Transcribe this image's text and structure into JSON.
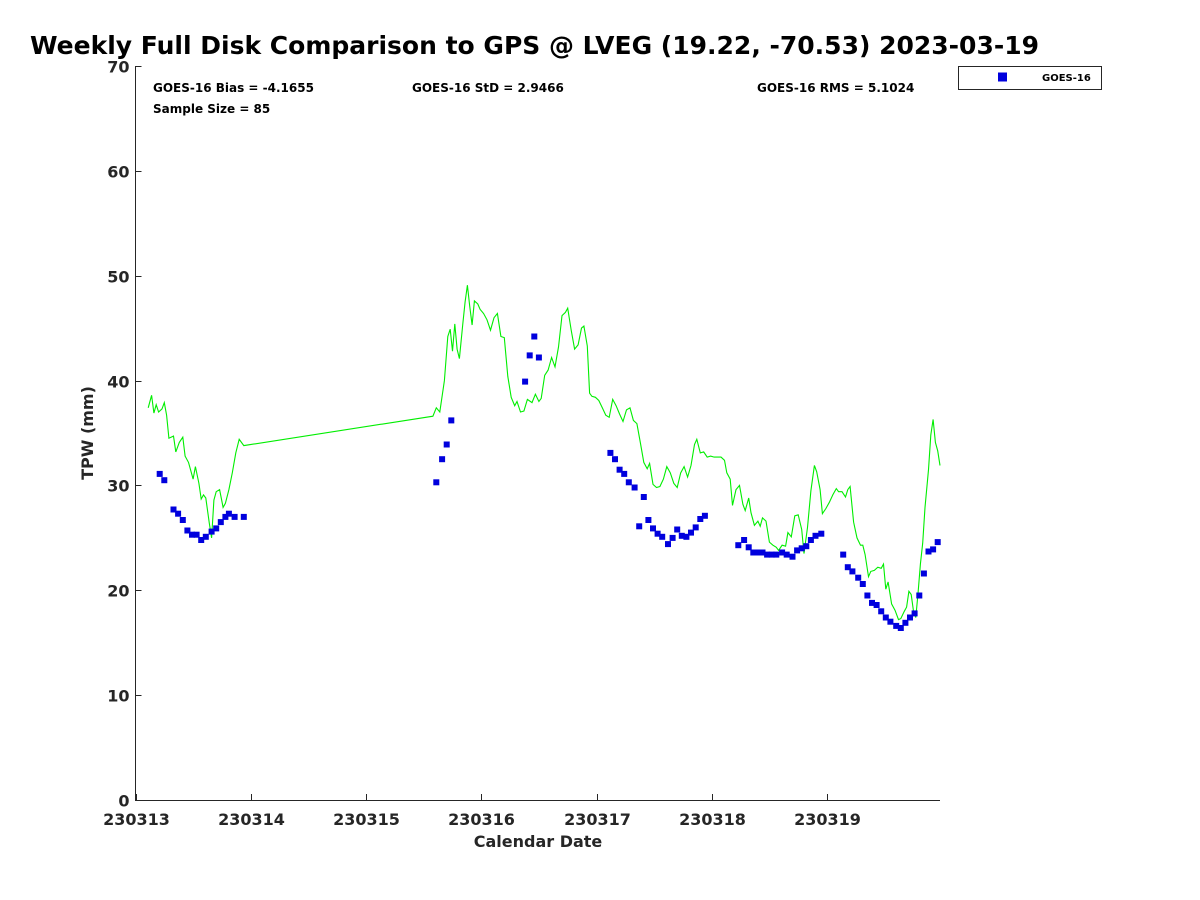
{
  "colors": {
    "series": "#0000dd",
    "gps": "#00ee00",
    "axis": "#262626"
  },
  "chart_data": {
    "type": "scatter",
    "title": "Weekly Full Disk Comparison to GPS @ LVEG (19.22, -70.53) 2023-03-19",
    "xlabel": "Calendar Date",
    "ylabel": "TPW (mm)",
    "xlim": [
      13.0,
      19.98
    ],
    "ylim": [
      0,
      70
    ],
    "yticks": [
      0,
      10,
      20,
      30,
      40,
      50,
      60,
      70
    ],
    "xticks": [
      {
        "value": 13,
        "label": "230313"
      },
      {
        "value": 14,
        "label": "230314"
      },
      {
        "value": 15,
        "label": "230315"
      },
      {
        "value": 16,
        "label": "230316"
      },
      {
        "value": 17,
        "label": "230317"
      },
      {
        "value": 18,
        "label": "230318"
      },
      {
        "value": 19,
        "label": "230319"
      }
    ],
    "stats": {
      "bias": "GOES-16 Bias = -4.1655",
      "std": "GOES-16 StD = 2.9466",
      "rms": "GOES-16 RMS = 5.1024",
      "sample": "Sample Size = 85"
    },
    "legend": {
      "label": "GOES-16",
      "position": "top-right outside"
    },
    "series": [
      {
        "name": "GOES-16",
        "marker": "square",
        "points": [
          [
            13.21,
            31.1
          ],
          [
            13.25,
            30.5
          ],
          [
            13.33,
            27.7
          ],
          [
            13.37,
            27.3
          ],
          [
            13.41,
            26.7
          ],
          [
            13.45,
            25.7
          ],
          [
            13.49,
            25.3
          ],
          [
            13.53,
            25.3
          ],
          [
            13.57,
            24.8
          ],
          [
            13.61,
            25.1
          ],
          [
            13.66,
            25.6
          ],
          [
            13.7,
            25.9
          ],
          [
            13.74,
            26.5
          ],
          [
            13.78,
            27.0
          ],
          [
            13.81,
            27.3
          ],
          [
            13.86,
            27.0
          ],
          [
            13.94,
            27.0
          ],
          [
            15.61,
            30.3
          ],
          [
            15.66,
            32.5
          ],
          [
            15.7,
            33.9
          ],
          [
            15.74,
            36.2
          ],
          [
            16.38,
            39.9
          ],
          [
            16.42,
            42.4
          ],
          [
            16.46,
            44.2
          ],
          [
            16.5,
            42.2
          ],
          [
            17.12,
            33.1
          ],
          [
            17.16,
            32.5
          ],
          [
            17.2,
            31.5
          ],
          [
            17.24,
            31.1
          ],
          [
            17.28,
            30.3
          ],
          [
            17.33,
            29.8
          ],
          [
            17.37,
            26.1
          ],
          [
            17.41,
            28.9
          ],
          [
            17.45,
            26.7
          ],
          [
            17.49,
            25.9
          ],
          [
            17.53,
            25.4
          ],
          [
            17.57,
            25.1
          ],
          [
            17.62,
            24.4
          ],
          [
            17.66,
            25.0
          ],
          [
            17.7,
            25.8
          ],
          [
            17.74,
            25.2
          ],
          [
            17.78,
            25.1
          ],
          [
            17.82,
            25.5
          ],
          [
            17.86,
            26.0
          ],
          [
            17.9,
            26.8
          ],
          [
            17.94,
            27.1
          ],
          [
            18.23,
            24.3
          ],
          [
            18.28,
            24.8
          ],
          [
            18.32,
            24.1
          ],
          [
            18.36,
            23.6
          ],
          [
            18.4,
            23.6
          ],
          [
            18.44,
            23.6
          ],
          [
            18.48,
            23.4
          ],
          [
            18.52,
            23.4
          ],
          [
            18.56,
            23.4
          ],
          [
            18.61,
            23.6
          ],
          [
            18.65,
            23.4
          ],
          [
            18.7,
            23.2
          ],
          [
            18.74,
            23.8
          ],
          [
            18.78,
            24.0
          ],
          [
            18.82,
            24.2
          ],
          [
            18.86,
            24.8
          ],
          [
            18.9,
            25.2
          ],
          [
            18.95,
            25.4
          ],
          [
            19.14,
            23.4
          ],
          [
            19.18,
            22.2
          ],
          [
            19.22,
            21.8
          ],
          [
            19.27,
            21.2
          ],
          [
            19.31,
            20.6
          ],
          [
            19.35,
            19.5
          ],
          [
            19.39,
            18.8
          ],
          [
            19.43,
            18.6
          ],
          [
            19.47,
            18.0
          ],
          [
            19.51,
            17.4
          ],
          [
            19.55,
            17.0
          ],
          [
            19.6,
            16.6
          ],
          [
            19.64,
            16.4
          ],
          [
            19.68,
            16.9
          ],
          [
            19.72,
            17.4
          ],
          [
            19.76,
            17.8
          ],
          [
            19.8,
            19.5
          ],
          [
            19.84,
            21.6
          ],
          [
            19.88,
            23.7
          ],
          [
            19.92,
            23.9
          ],
          [
            19.96,
            24.6
          ]
        ]
      },
      {
        "name": "GPS",
        "marker": "line",
        "points": [
          [
            13.11,
            37.4
          ],
          [
            13.14,
            38.6
          ],
          [
            13.16,
            36.9
          ],
          [
            13.18,
            37.7
          ],
          [
            13.2,
            37.0
          ],
          [
            13.23,
            37.3
          ],
          [
            13.25,
            37.9
          ],
          [
            13.27,
            36.7
          ],
          [
            13.29,
            34.5
          ],
          [
            13.33,
            34.7
          ],
          [
            13.35,
            33.2
          ],
          [
            13.38,
            34.1
          ],
          [
            13.41,
            34.6
          ],
          [
            13.43,
            32.8
          ],
          [
            13.46,
            32.2
          ],
          [
            13.48,
            31.4
          ],
          [
            13.5,
            30.6
          ],
          [
            13.52,
            31.8
          ],
          [
            13.55,
            30.2
          ],
          [
            13.57,
            28.7
          ],
          [
            13.59,
            29.1
          ],
          [
            13.61,
            28.8
          ],
          [
            13.64,
            26.4
          ],
          [
            13.66,
            25.0
          ],
          [
            13.68,
            28.6
          ],
          [
            13.7,
            29.4
          ],
          [
            13.73,
            29.6
          ],
          [
            13.76,
            27.9
          ],
          [
            13.78,
            28.3
          ],
          [
            13.81,
            29.6
          ],
          [
            13.84,
            31.2
          ],
          [
            13.87,
            33.1
          ],
          [
            13.9,
            34.4
          ],
          [
            13.94,
            33.8
          ],
          [
            15.58,
            36.6
          ],
          [
            15.61,
            37.4
          ],
          [
            15.64,
            37.0
          ],
          [
            15.68,
            40.0
          ],
          [
            15.71,
            44.2
          ],
          [
            15.73,
            44.9
          ],
          [
            15.75,
            42.8
          ],
          [
            15.77,
            45.4
          ],
          [
            15.79,
            43.0
          ],
          [
            15.81,
            42.1
          ],
          [
            15.84,
            45.4
          ],
          [
            15.86,
            47.5
          ],
          [
            15.88,
            49.1
          ],
          [
            15.9,
            47.1
          ],
          [
            15.92,
            45.3
          ],
          [
            15.94,
            47.6
          ],
          [
            15.97,
            47.3
          ],
          [
            15.99,
            46.8
          ],
          [
            16.02,
            46.4
          ],
          [
            16.05,
            45.8
          ],
          [
            16.08,
            44.8
          ],
          [
            16.11,
            46.0
          ],
          [
            16.14,
            46.4
          ],
          [
            16.17,
            44.2
          ],
          [
            16.2,
            44.1
          ],
          [
            16.23,
            40.4
          ],
          [
            16.26,
            38.4
          ],
          [
            16.29,
            37.6
          ],
          [
            16.31,
            38.0
          ],
          [
            16.34,
            37.0
          ],
          [
            16.37,
            37.1
          ],
          [
            16.4,
            38.2
          ],
          [
            16.44,
            37.9
          ],
          [
            16.47,
            38.7
          ],
          [
            16.5,
            38.0
          ],
          [
            16.52,
            38.3
          ],
          [
            16.55,
            40.5
          ],
          [
            16.58,
            41.0
          ],
          [
            16.61,
            42.2
          ],
          [
            16.64,
            41.3
          ],
          [
            16.67,
            43.2
          ],
          [
            16.7,
            46.2
          ],
          [
            16.73,
            46.5
          ],
          [
            16.75,
            46.9
          ],
          [
            16.78,
            44.8
          ],
          [
            16.81,
            43.0
          ],
          [
            16.84,
            43.4
          ],
          [
            16.87,
            45.0
          ],
          [
            16.89,
            45.2
          ],
          [
            16.92,
            43.3
          ],
          [
            16.94,
            38.8
          ],
          [
            16.96,
            38.5
          ],
          [
            16.99,
            38.4
          ],
          [
            17.02,
            38.1
          ],
          [
            17.05,
            37.4
          ],
          [
            17.08,
            36.7
          ],
          [
            17.11,
            36.5
          ],
          [
            17.14,
            38.2
          ],
          [
            17.17,
            37.6
          ],
          [
            17.2,
            36.8
          ],
          [
            17.23,
            36.1
          ],
          [
            17.26,
            37.2
          ],
          [
            17.29,
            37.4
          ],
          [
            17.32,
            36.2
          ],
          [
            17.35,
            35.9
          ],
          [
            17.38,
            34.1
          ],
          [
            17.41,
            32.2
          ],
          [
            17.44,
            31.6
          ],
          [
            17.46,
            32.1
          ],
          [
            17.49,
            30.1
          ],
          [
            17.52,
            29.8
          ],
          [
            17.55,
            29.9
          ],
          [
            17.58,
            30.6
          ],
          [
            17.61,
            31.8
          ],
          [
            17.64,
            31.2
          ],
          [
            17.67,
            30.2
          ],
          [
            17.7,
            29.8
          ],
          [
            17.73,
            31.2
          ],
          [
            17.76,
            31.8
          ],
          [
            17.79,
            30.8
          ],
          [
            17.82,
            31.9
          ],
          [
            17.85,
            33.9
          ],
          [
            17.87,
            34.4
          ],
          [
            17.9,
            33.1
          ],
          [
            17.93,
            33.2
          ],
          [
            17.96,
            32.7
          ],
          [
            17.99,
            32.8
          ],
          [
            18.02,
            32.7
          ],
          [
            18.05,
            32.7
          ],
          [
            18.08,
            32.7
          ],
          [
            18.11,
            32.4
          ],
          [
            18.13,
            31.2
          ],
          [
            18.16,
            30.6
          ],
          [
            18.18,
            28.1
          ],
          [
            18.21,
            29.6
          ],
          [
            18.24,
            30.0
          ],
          [
            18.27,
            28.2
          ],
          [
            18.29,
            27.6
          ],
          [
            18.32,
            28.8
          ],
          [
            18.34,
            27.4
          ],
          [
            18.37,
            26.2
          ],
          [
            18.4,
            26.6
          ],
          [
            18.42,
            26.1
          ],
          [
            18.44,
            26.9
          ],
          [
            18.47,
            26.6
          ],
          [
            18.5,
            24.6
          ],
          [
            18.53,
            24.3
          ],
          [
            18.56,
            24.1
          ],
          [
            18.58,
            23.8
          ],
          [
            18.61,
            24.3
          ],
          [
            18.64,
            24.2
          ],
          [
            18.66,
            25.5
          ],
          [
            18.69,
            25.1
          ],
          [
            18.72,
            27.1
          ],
          [
            18.75,
            27.2
          ],
          [
            18.78,
            25.8
          ],
          [
            18.8,
            23.5
          ],
          [
            18.83,
            26.0
          ],
          [
            18.86,
            29.5
          ],
          [
            18.89,
            31.9
          ],
          [
            18.91,
            31.3
          ],
          [
            18.94,
            29.6
          ],
          [
            18.96,
            27.3
          ],
          [
            18.99,
            27.8
          ],
          [
            19.02,
            28.4
          ],
          [
            19.05,
            29.1
          ],
          [
            19.08,
            29.7
          ],
          [
            19.1,
            29.4
          ],
          [
            19.13,
            29.4
          ],
          [
            19.16,
            28.9
          ],
          [
            19.18,
            29.6
          ],
          [
            19.2,
            29.9
          ],
          [
            19.23,
            26.5
          ],
          [
            19.26,
            25.0
          ],
          [
            19.29,
            24.3
          ],
          [
            19.31,
            24.3
          ],
          [
            19.33,
            23.4
          ],
          [
            19.36,
            21.3
          ],
          [
            19.38,
            21.8
          ],
          [
            19.41,
            21.9
          ],
          [
            19.44,
            22.2
          ],
          [
            19.47,
            22.1
          ],
          [
            19.49,
            22.5
          ],
          [
            19.51,
            20.1
          ],
          [
            19.53,
            20.8
          ],
          [
            19.56,
            18.7
          ],
          [
            19.59,
            18.1
          ],
          [
            19.62,
            17.2
          ],
          [
            19.64,
            17.3
          ],
          [
            19.67,
            18.0
          ],
          [
            19.69,
            18.4
          ],
          [
            19.71,
            19.9
          ],
          [
            19.73,
            19.6
          ],
          [
            19.75,
            18.0
          ],
          [
            19.77,
            17.4
          ],
          [
            19.79,
            19.8
          ],
          [
            19.81,
            22.5
          ],
          [
            19.83,
            24.5
          ],
          [
            19.85,
            27.9
          ],
          [
            19.88,
            31.5
          ],
          [
            19.9,
            34.8
          ],
          [
            19.92,
            36.3
          ],
          [
            19.94,
            34.1
          ],
          [
            19.96,
            33.3
          ],
          [
            19.98,
            31.9
          ]
        ]
      }
    ]
  }
}
